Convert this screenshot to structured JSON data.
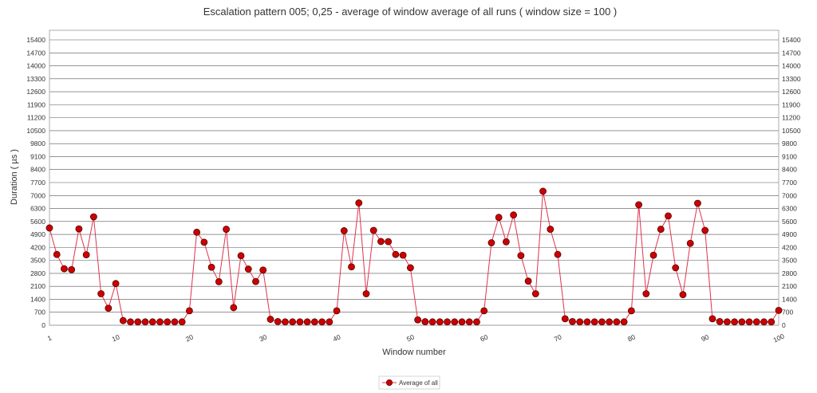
{
  "chart_data": {
    "type": "line",
    "title": "Escalation pattern 005; 0,25 - average of window average of all runs ( window size = 100 )",
    "xlabel": "Window number",
    "ylabel": "Duration ( µs )",
    "xlim": [
      1,
      100
    ],
    "ylim": [
      0,
      15400
    ],
    "y_ticks": [
      0,
      700,
      1400,
      2100,
      2800,
      3500,
      4200,
      4900,
      5600,
      6300,
      7000,
      7700,
      8400,
      9100,
      9800,
      10500,
      11200,
      11900,
      12600,
      13300,
      14000,
      14700,
      15400
    ],
    "x_tick_labels": [
      "1",
      "10",
      "20",
      "30",
      "40",
      "50",
      "60",
      "70",
      "80",
      "90",
      "100"
    ],
    "x_tick_values": [
      1,
      10,
      20,
      30,
      40,
      50,
      60,
      70,
      80,
      90,
      100
    ],
    "grid": true,
    "legend_position": "bottom-center",
    "colors": {
      "line": "#e0334d",
      "marker_fill": "#cc0000",
      "marker_stroke": "#550000",
      "grid": "#555555",
      "frame": "#999999"
    },
    "series": [
      {
        "name": "Average of all",
        "x": [
          1,
          2,
          3,
          4,
          5,
          6,
          7,
          8,
          9,
          10,
          11,
          12,
          13,
          14,
          15,
          16,
          17,
          18,
          19,
          20,
          21,
          22,
          23,
          24,
          25,
          26,
          27,
          28,
          29,
          30,
          31,
          32,
          33,
          34,
          35,
          36,
          37,
          38,
          39,
          40,
          41,
          42,
          43,
          44,
          45,
          46,
          47,
          48,
          49,
          50,
          51,
          52,
          53,
          54,
          55,
          56,
          57,
          58,
          59,
          60,
          61,
          62,
          63,
          64,
          65,
          66,
          67,
          68,
          69,
          70,
          71,
          72,
          73,
          74,
          75,
          76,
          77,
          78,
          79,
          80,
          81,
          82,
          83,
          84,
          85,
          86,
          87,
          88,
          89,
          90,
          91,
          92,
          93,
          94,
          95,
          96,
          97,
          98,
          99,
          100
        ],
        "values": [
          5250,
          3820,
          3050,
          3000,
          5200,
          3800,
          5850,
          1700,
          920,
          2250,
          250,
          180,
          180,
          180,
          180,
          180,
          180,
          180,
          180,
          780,
          5020,
          4480,
          3130,
          2350,
          5180,
          950,
          3750,
          3030,
          2360,
          2980,
          320,
          200,
          180,
          180,
          180,
          180,
          180,
          180,
          180,
          780,
          5100,
          3150,
          6600,
          1700,
          5120,
          4520,
          4510,
          3820,
          3780,
          3100,
          290,
          190,
          180,
          180,
          180,
          180,
          180,
          180,
          180,
          780,
          4450,
          5820,
          4500,
          5950,
          3760,
          2380,
          1700,
          7230,
          5180,
          3820,
          350,
          200,
          180,
          180,
          180,
          180,
          180,
          180,
          180,
          780,
          6500,
          1700,
          3780,
          5180,
          5900,
          3100,
          1650,
          4420,
          6580,
          5120,
          350,
          200,
          180,
          180,
          180,
          180,
          180,
          180,
          180,
          800
        ]
      }
    ]
  }
}
